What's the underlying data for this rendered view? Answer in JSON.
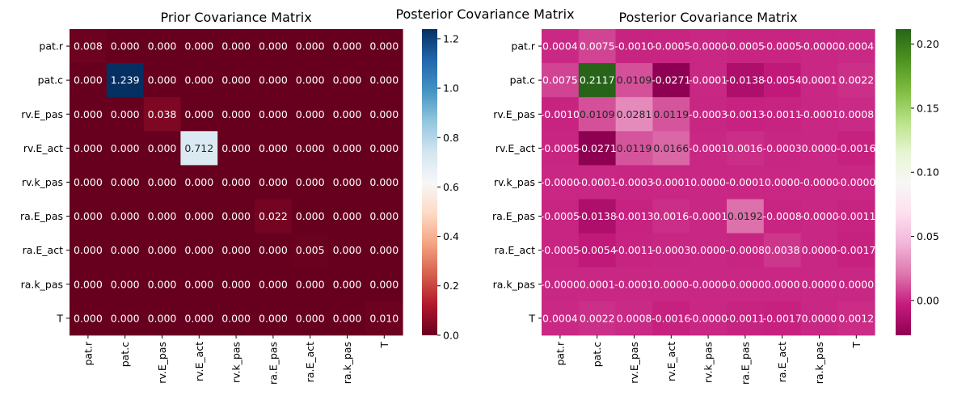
{
  "suptitle": "Posterior Covariance Matrix",
  "chart_data": [
    {
      "type": "heatmap",
      "title": "Prior Covariance Matrix",
      "colormap": "RdBu",
      "colormap_stops": [
        "#67001f",
        "#b2182b",
        "#d6604d",
        "#f4a582",
        "#fddbc7",
        "#f7f7f7",
        "#d1e5f0",
        "#92c5de",
        "#4393c3",
        "#2166ac",
        "#053061"
      ],
      "rows": [
        "pat.r",
        "pat.c",
        "rv.E_pas",
        "rv.E_act",
        "rv.k_pas",
        "ra.E_pas",
        "ra.E_act",
        "ra.k_pas",
        "T"
      ],
      "cols": [
        "pat.r",
        "pat.c",
        "rv.E_pas",
        "rv.E_act",
        "rv.k_pas",
        "ra.E_pas",
        "ra.E_act",
        "ra.k_pas",
        "T"
      ],
      "values": [
        [
          0.008,
          0,
          0,
          0,
          0,
          0,
          0,
          0,
          0
        ],
        [
          0,
          1.239,
          0,
          0,
          0,
          0,
          0,
          0,
          0
        ],
        [
          0,
          0,
          0.038,
          0,
          0,
          0,
          0,
          0,
          0
        ],
        [
          0,
          0,
          0,
          0.712,
          0,
          0,
          0,
          0,
          0
        ],
        [
          0,
          0,
          0,
          0,
          0,
          0,
          0,
          0,
          0
        ],
        [
          0,
          0,
          0,
          0,
          0,
          0.022,
          0,
          0,
          0
        ],
        [
          0,
          0,
          0,
          0,
          0,
          0,
          0.005,
          0,
          0
        ],
        [
          0,
          0,
          0,
          0,
          0,
          0,
          0,
          0,
          0
        ],
        [
          0,
          0,
          0,
          0,
          0,
          0,
          0,
          0,
          0.01
        ]
      ],
      "cell_labels": [
        [
          "0.008",
          "0.000",
          "0.000",
          "0.000",
          "0.000",
          "0.000",
          "0.000",
          "0.000",
          "0.000"
        ],
        [
          "0.000",
          "1.239",
          "0.000",
          "0.000",
          "0.000",
          "0.000",
          "0.000",
          "0.000",
          "0.000"
        ],
        [
          "0.000",
          "0.000",
          "0.038",
          "0.000",
          "0.000",
          "0.000",
          "0.000",
          "0.000",
          "0.000"
        ],
        [
          "0.000",
          "0.000",
          "0.000",
          "0.712",
          "0.000",
          "0.000",
          "0.000",
          "0.000",
          "0.000"
        ],
        [
          "0.000",
          "0.000",
          "0.000",
          "0.000",
          "0.000",
          "0.000",
          "0.000",
          "0.000",
          "0.000"
        ],
        [
          "0.000",
          "0.000",
          "0.000",
          "0.000",
          "0.000",
          "0.022",
          "0.000",
          "0.000",
          "0.000"
        ],
        [
          "0.000",
          "0.000",
          "0.000",
          "0.000",
          "0.000",
          "0.000",
          "0.005",
          "0.000",
          "0.000"
        ],
        [
          "0.000",
          "0.000",
          "0.000",
          "0.000",
          "0.000",
          "0.000",
          "0.000",
          "0.000",
          "0.000"
        ],
        [
          "0.000",
          "0.000",
          "0.000",
          "0.000",
          "0.000",
          "0.000",
          "0.000",
          "0.000",
          "0.010"
        ]
      ],
      "colorbar": {
        "range": [
          0,
          1.239
        ],
        "ticks": [
          0.0,
          0.2,
          0.4,
          0.6,
          0.8,
          1.0,
          1.2
        ],
        "tick_labels": [
          "0.0",
          "0.2",
          "0.4",
          "0.6",
          "0.8",
          "1.0",
          "1.2"
        ]
      }
    },
    {
      "type": "heatmap",
      "title": "Posterior Covariance Matrix",
      "colormap": "PiYG",
      "colormap_stops": [
        "#8e0152",
        "#c51b7d",
        "#de77ae",
        "#f1b6da",
        "#fde0ef",
        "#f7f7f7",
        "#e6f5d0",
        "#b8e186",
        "#7fbc41",
        "#4d9221",
        "#276419"
      ],
      "rows": [
        "pat.r",
        "pat.c",
        "rv.E_pas",
        "rv.E_act",
        "rv.k_pas",
        "ra.E_pas",
        "ra.E_act",
        "ra.k_pas",
        "T"
      ],
      "cols": [
        "pat.r",
        "pat.c",
        "rv.E_pas",
        "rv.E_act",
        "rv.k_pas",
        "ra.E_pas",
        "ra.E_act",
        "ra.k_pas",
        "T"
      ],
      "values": [
        [
          0.0004,
          0.0075,
          -0.001,
          -0.0005,
          -0.0,
          -0.0005,
          -0.0005,
          -0.0,
          0.0004
        ],
        [
          0.0075,
          0.2117,
          0.0109,
          -0.0271,
          -0.0001,
          -0.0138,
          -0.0054,
          0.0001,
          0.0022
        ],
        [
          -0.001,
          0.0109,
          0.0281,
          0.0119,
          -0.0003,
          -0.0013,
          -0.0011,
          -0.0001,
          0.0008
        ],
        [
          -0.0005,
          -0.0271,
          0.0119,
          0.0166,
          -0.0001,
          0.0016,
          -0.0003,
          0.0,
          -0.0016
        ],
        [
          -0.0,
          -0.0001,
          -0.0003,
          -0.0001,
          0.0,
          -0.0001,
          0.0,
          -0.0,
          -0.0
        ],
        [
          -0.0005,
          -0.0138,
          -0.0013,
          0.0016,
          -0.0001,
          0.0192,
          -0.0008,
          -0.0,
          -0.0011
        ],
        [
          -0.0005,
          -0.0054,
          -0.0011,
          -0.0003,
          0.0,
          -0.0008,
          0.0038,
          0.0,
          -0.0017
        ],
        [
          -0.0,
          0.0001,
          -0.0001,
          0.0,
          -0.0,
          -0.0,
          0.0,
          0.0,
          0.0
        ],
        [
          0.0004,
          0.0022,
          0.0008,
          -0.0016,
          -0.0,
          -0.0011,
          -0.0017,
          0.0,
          0.0012
        ]
      ],
      "cell_labels": [
        [
          "0.0004",
          "0.0075",
          "-0.0010",
          "-0.0005",
          "-0.0000",
          "-0.0005",
          "-0.0005",
          "-0.0000",
          "0.0004"
        ],
        [
          "0.0075",
          "0.2117",
          "0.0109",
          "-0.0271",
          "-0.0001",
          "-0.0138",
          "-0.0054",
          "0.0001",
          "0.0022"
        ],
        [
          "-0.0010",
          "0.0109",
          "0.0281",
          "0.0119",
          "-0.0003",
          "-0.0013",
          "-0.0011",
          "-0.0001",
          "0.0008"
        ],
        [
          "-0.0005",
          "-0.0271",
          "0.0119",
          "0.0166",
          "-0.0001",
          "0.0016",
          "-0.0003",
          "0.0000",
          "-0.0016"
        ],
        [
          "-0.0000",
          "-0.0001",
          "-0.0003",
          "-0.0001",
          "0.0000",
          "-0.0001",
          "0.0000",
          "-0.0000",
          "-0.0000"
        ],
        [
          "-0.0005",
          "-0.0138",
          "-0.0013",
          "0.0016",
          "-0.0001",
          "0.0192",
          "-0.0008",
          "-0.0000",
          "-0.0011"
        ],
        [
          "-0.0005",
          "-0.0054",
          "-0.0011",
          "-0.0003",
          "0.0000",
          "-0.0008",
          "0.0038",
          "0.0000",
          "-0.0017"
        ],
        [
          "-0.0000",
          "0.0001",
          "-0.0001",
          "0.0000",
          "-0.0000",
          "-0.0000",
          "0.0000",
          "0.0000",
          "0.0000"
        ],
        [
          "0.0004",
          "0.0022",
          "0.0008",
          "-0.0016",
          "-0.0000",
          "-0.0011",
          "-0.0017",
          "0.0000",
          "0.0012"
        ]
      ],
      "colorbar": {
        "range": [
          -0.0271,
          0.2117
        ],
        "ticks": [
          0.0,
          0.05,
          0.1,
          0.15,
          0.2
        ],
        "tick_labels": [
          "0.00",
          "0.05",
          "0.10",
          "0.15",
          "0.20"
        ]
      }
    }
  ]
}
